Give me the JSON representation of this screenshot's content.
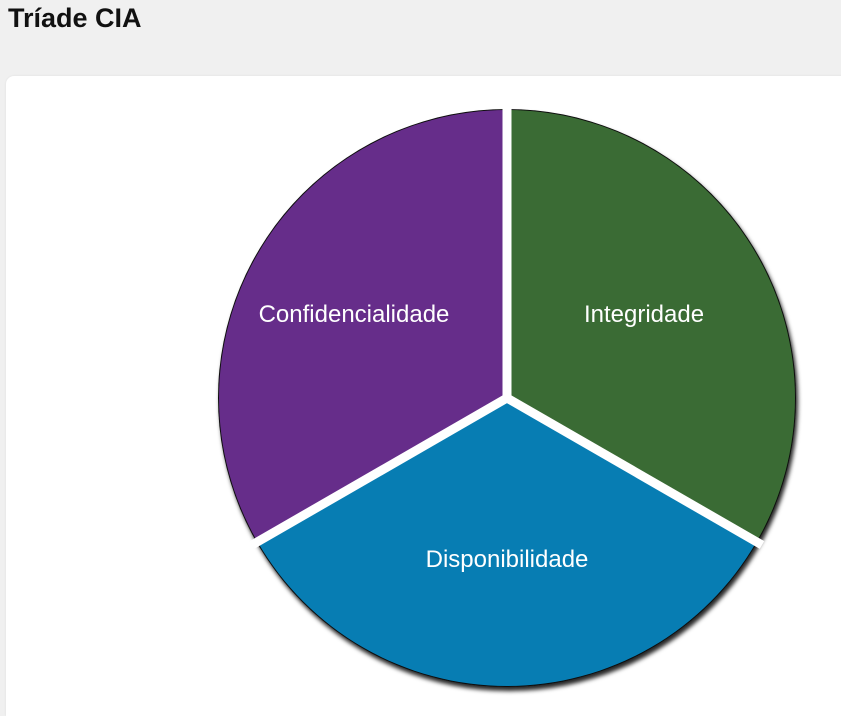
{
  "header": {
    "title": "Tríade CIA"
  },
  "diagram": {
    "segments": [
      {
        "id": "confidencialidade",
        "label": "Confidencialidade",
        "color": "#662d8a"
      },
      {
        "id": "integridade",
        "label": "Integridade",
        "color": "#3a6b34"
      },
      {
        "id": "disponibilidade",
        "label": "Disponibilidade",
        "color": "#077db3"
      }
    ]
  }
}
